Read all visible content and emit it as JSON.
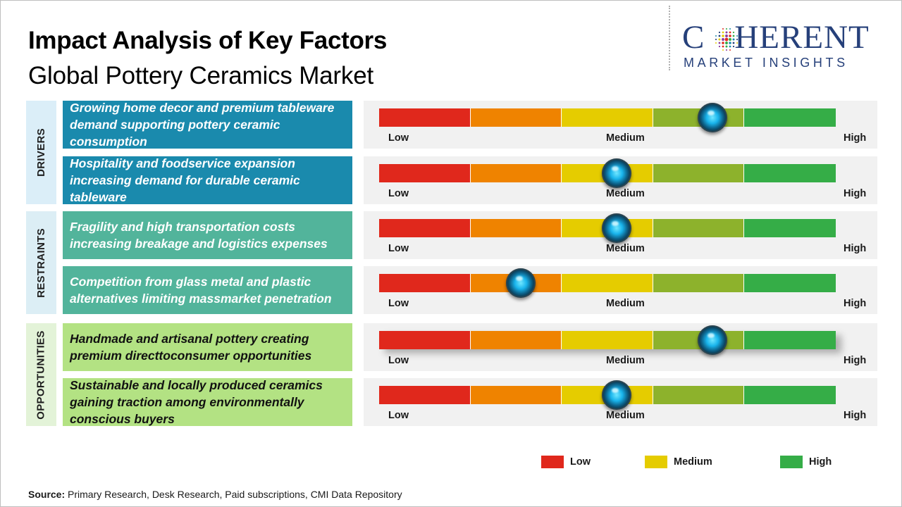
{
  "header": {
    "title": "Impact Analysis of Key Factors",
    "subtitle": "Global Pottery Ceramics Market"
  },
  "logo": {
    "word_start": "C",
    "word_end": "HERENT",
    "tagline": "MARKET INSIGHTS",
    "color": "#26407a"
  },
  "scale_colors": [
    "#e0281c",
    "#ef8300",
    "#e5cc00",
    "#8db22c",
    "#35ad47"
  ],
  "categories": [
    {
      "label": "DRIVERS",
      "bg": "#dbeef8",
      "factor_bg": "#1a8aad"
    },
    {
      "label": "RESTRAINTS",
      "bg": "#dceef5",
      "factor_bg": "#52b49b"
    },
    {
      "label": "OPPORTUNITIES",
      "bg": "#e3f3d8",
      "factor_bg": "#b3e283"
    }
  ],
  "chart_data": {
    "type": "gauge",
    "scale": {
      "min": 0,
      "max": 5,
      "labels": [
        "Low",
        "Medium",
        "High"
      ]
    },
    "factors": [
      {
        "category": "DRIVERS",
        "text": "Growing home decor and premium tableware demand supporting pottery ceramic consumption",
        "impact": 3.65,
        "low": "Low",
        "medium": "Medium",
        "high": "High"
      },
      {
        "category": "DRIVERS",
        "text": "Hospitality and foodservice expansion increasing demand for durable ceramic tableware",
        "impact": 2.6,
        "low": "Low",
        "medium": "Medium",
        "high": "High"
      },
      {
        "category": "RESTRAINTS",
        "text": "Fragility and high transportation costs increasing breakage and logistics expenses",
        "impact": 2.6,
        "low": "Low",
        "medium": "Medium",
        "high": "High"
      },
      {
        "category": "RESTRAINTS",
        "text": "Competition from glass metal and plastic alternatives limiting massmarket penetration",
        "impact": 1.55,
        "low": "Low",
        "medium": "Medium",
        "high": "High"
      },
      {
        "category": "OPPORTUNITIES",
        "text": "Handmade and artisanal pottery creating premium directtoconsumer opportunities",
        "impact": 3.65,
        "low": "Low",
        "medium": "Medium",
        "high": "High"
      },
      {
        "category": "OPPORTUNITIES",
        "text": "Sustainable and locally produced ceramics gaining traction among environmentally conscious buyers",
        "impact": 2.6,
        "low": "Low",
        "medium": "Medium",
        "high": "High"
      }
    ],
    "legend": [
      {
        "label": "Low",
        "color": "#e0281c"
      },
      {
        "label": "Medium",
        "color": "#e5cc00"
      },
      {
        "label": "High",
        "color": "#35ad47"
      }
    ]
  },
  "source": {
    "label": "Source:",
    "text": " Primary Research, Desk Research, Paid subscriptions, CMI Data Repository"
  }
}
